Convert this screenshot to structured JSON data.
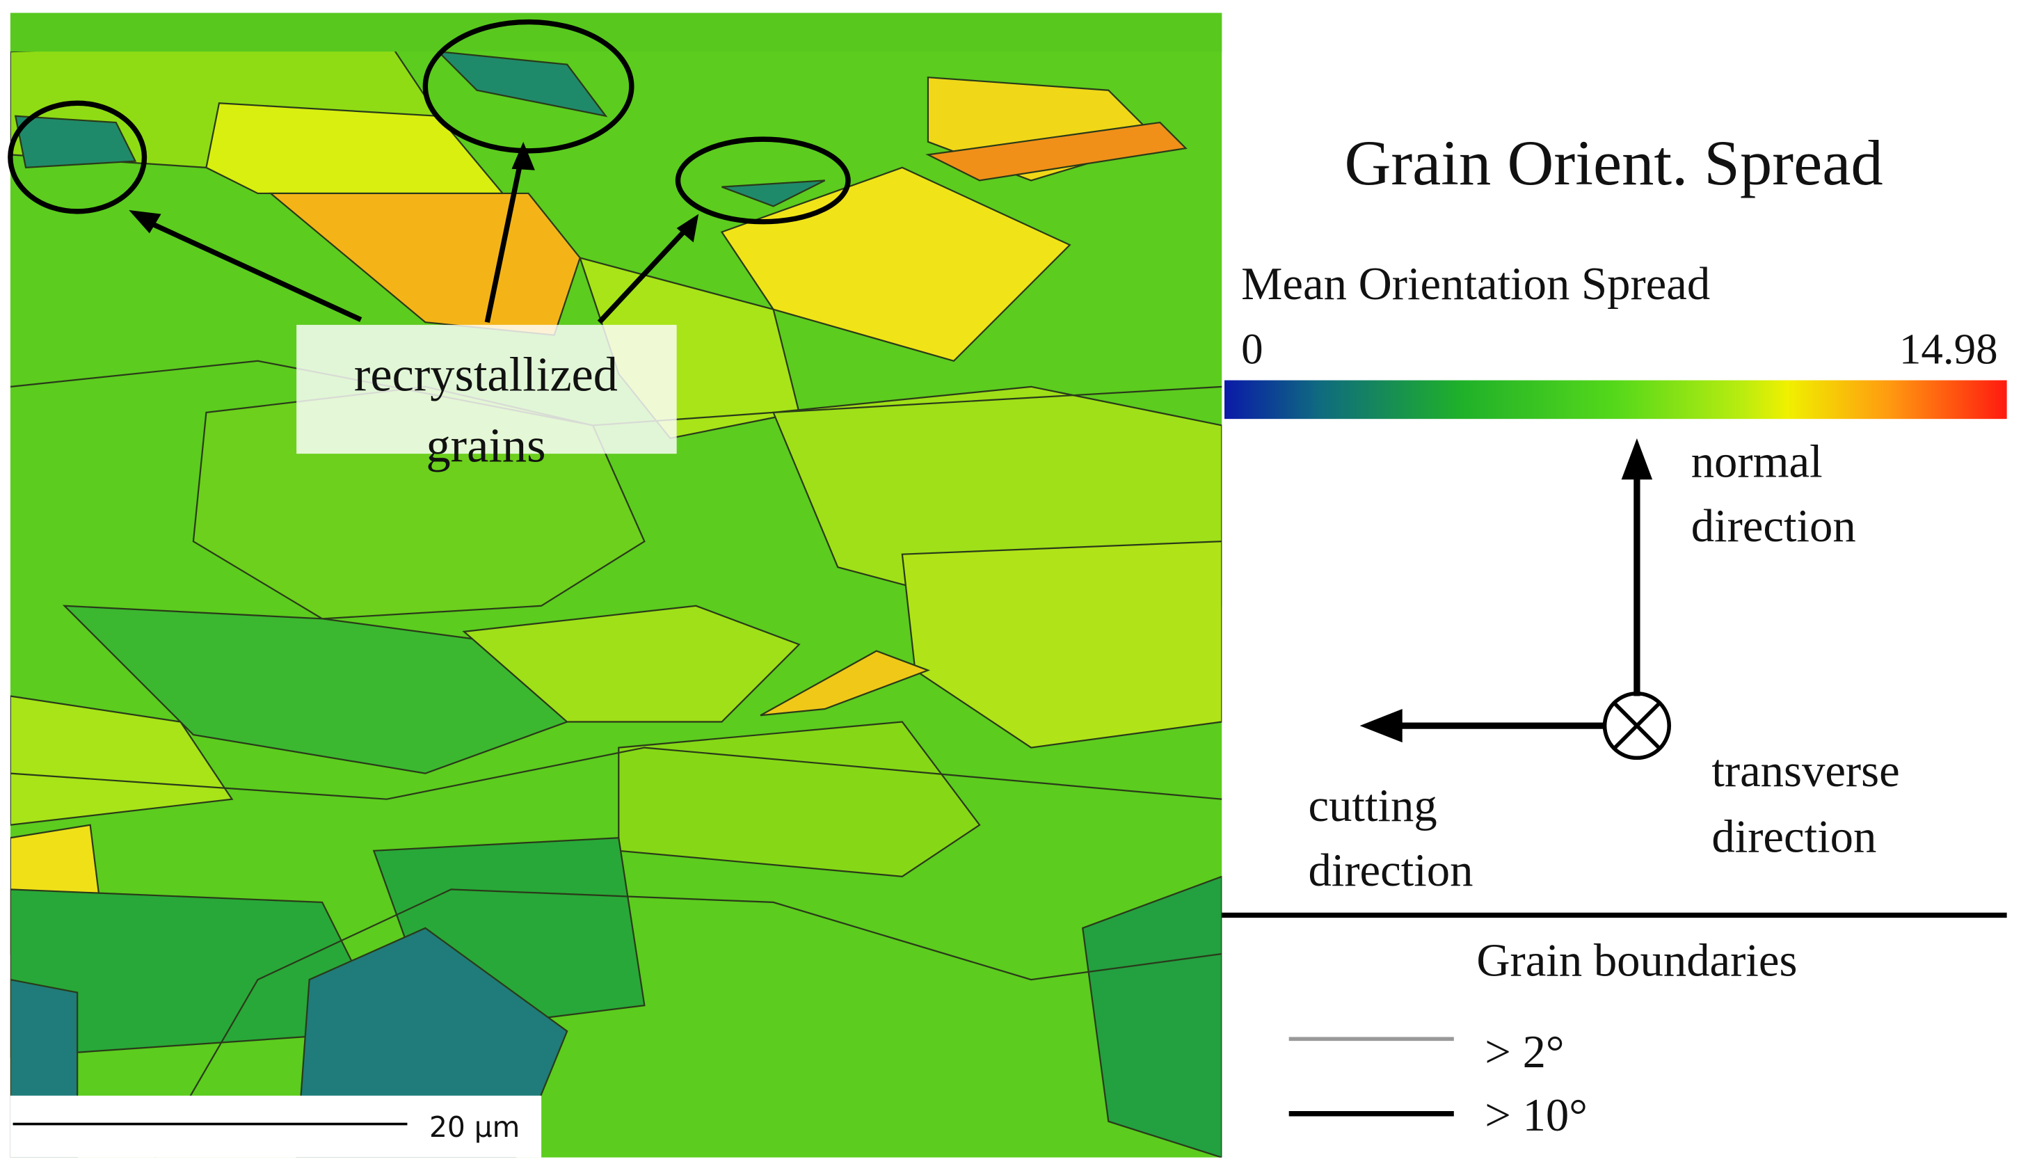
{
  "map": {
    "annotation": [
      "recrystallized",
      "grains"
    ],
    "scale_bar": "20 µm"
  },
  "legend": {
    "title": "Grain Orient. Spread",
    "colorbar": {
      "label": "Mean Orientation Spread",
      "min": 0,
      "max": 14.98
    },
    "axes": {
      "normal": [
        "normal",
        "direction"
      ],
      "cutting": [
        "cutting",
        "direction"
      ],
      "transverse": [
        "transverse",
        "direction"
      ]
    },
    "boundaries": {
      "title": "Grain boundaries",
      "items": [
        "> 2°",
        "> 10°"
      ]
    }
  }
}
